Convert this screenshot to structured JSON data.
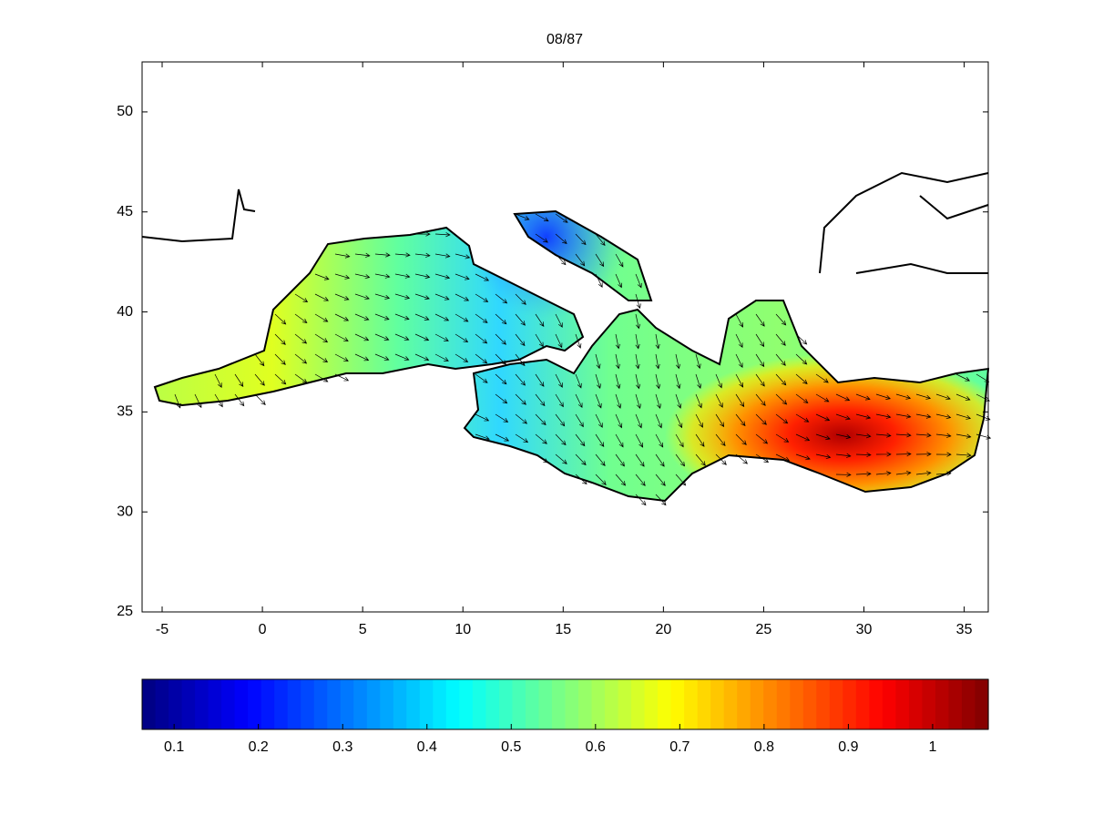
{
  "chart_data": {
    "type": "map",
    "title": "08/87",
    "xlim": [
      -6,
      36.2
    ],
    "xticks": [
      -5,
      0,
      5,
      10,
      15,
      20,
      25,
      30,
      35
    ],
    "ylim": [
      25,
      52.5
    ],
    "yticks": [
      25,
      30,
      35,
      40,
      45,
      50
    ],
    "colormap": "jet",
    "clim": [
      0.062,
      1.066
    ],
    "cticks": [
      0.1,
      0.2,
      0.3,
      0.4,
      0.5,
      0.6,
      0.7,
      0.8,
      0.9,
      1
    ]
  }
}
